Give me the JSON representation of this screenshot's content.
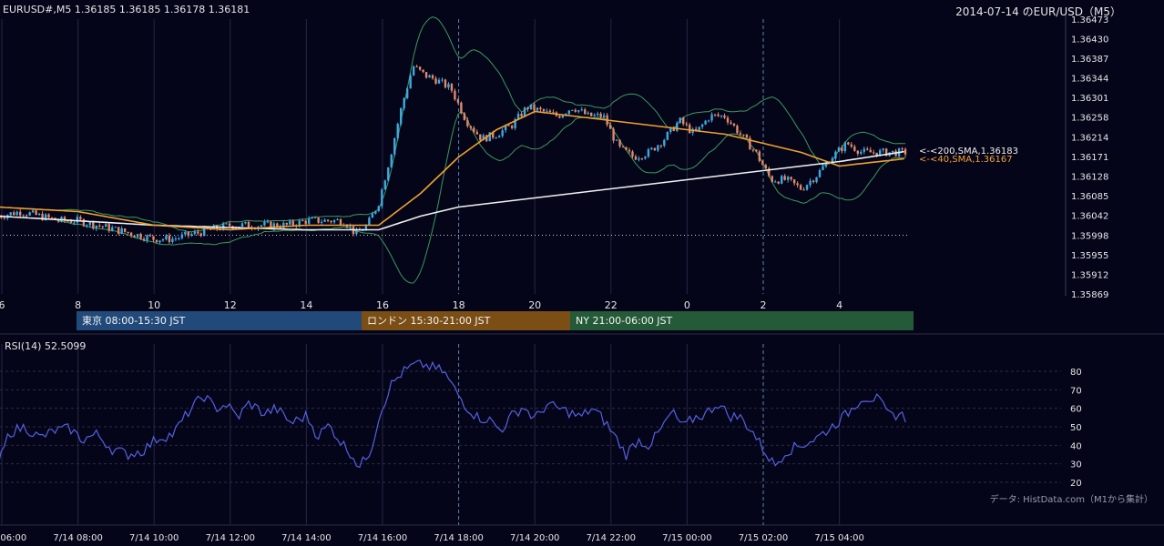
{
  "header": {
    "symbol_info": "EURUSD#,M5 1.36185 1.36185 1.36178 1.36181",
    "title": "2014-07-14 のEUR/USD（M5）"
  },
  "indicators": {
    "sma200_label": "<-<200,SMA,1.36183",
    "sma40_label": "<-<40,SMA,1.36167",
    "rsi_label": "RSI(14) 52.5099"
  },
  "sessions": [
    {
      "label": "東京 08:00-15:30 JST",
      "color": "#214a7a"
    },
    {
      "label": "ロンドン 15:30-21:00 JST",
      "color": "#7a4e14"
    },
    {
      "label": "NY 21:00-06:00 JST",
      "color": "#245a38"
    }
  ],
  "source_note": "データ: HistData.com（M1から集計）",
  "colors": {
    "background": "#05051a",
    "up_candle": "#3fa8e0",
    "down_candle": "#e08a6a",
    "sma200": "#f0f0f0",
    "sma40": "#f0a030",
    "bollinger": "#3a9a5a",
    "rsi": "#5560e0"
  },
  "chart_data": [
    {
      "type": "candlestick",
      "title": "2014-07-14 のEUR/USD（M5）",
      "yticks": [
        "1.36473",
        "1.36430",
        "1.36387",
        "1.36344",
        "1.36301",
        "1.36258",
        "1.36214",
        "1.36171",
        "1.36128",
        "1.36085",
        "1.36042",
        "1.35998",
        "1.35955",
        "1.35912",
        "1.35869"
      ],
      "ylim": [
        1.35869,
        1.36473
      ],
      "xticks": [
        "6",
        "8",
        "10",
        "12",
        "14",
        "16",
        "18",
        "20",
        "22",
        "0",
        "2",
        "4"
      ],
      "x_hours": [
        6,
        8,
        10,
        12,
        14,
        16,
        18,
        20,
        22,
        24,
        26,
        28
      ],
      "dotted_reference_level": 1.35998,
      "dashed_vertical_hours": [
        18,
        26
      ],
      "close_path": [
        [
          5.9,
          1.3604
        ],
        [
          6.5,
          1.3605
        ],
        [
          7.0,
          1.3604
        ],
        [
          7.5,
          1.3603
        ],
        [
          8.0,
          1.3603
        ],
        [
          8.5,
          1.3602
        ],
        [
          9.0,
          1.3601
        ],
        [
          9.5,
          1.36
        ],
        [
          10.0,
          1.3599
        ],
        [
          10.5,
          1.3599
        ],
        [
          11.0,
          1.36
        ],
        [
          11.5,
          1.3601
        ],
        [
          12.0,
          1.3602
        ],
        [
          12.5,
          1.3602
        ],
        [
          13.0,
          1.3602
        ],
        [
          13.5,
          1.3602
        ],
        [
          14.0,
          1.3603
        ],
        [
          14.5,
          1.3603
        ],
        [
          15.0,
          1.3603
        ],
        [
          15.3,
          1.36
        ],
        [
          15.6,
          1.3602
        ],
        [
          15.9,
          1.3607
        ],
        [
          16.2,
          1.3617
        ],
        [
          16.5,
          1.3628
        ],
        [
          16.8,
          1.3637
        ],
        [
          17.1,
          1.3635
        ],
        [
          17.4,
          1.3634
        ],
        [
          17.8,
          1.3632
        ],
        [
          18.2,
          1.3625
        ],
        [
          18.6,
          1.3621
        ],
        [
          19.0,
          1.3622
        ],
        [
          19.4,
          1.3624
        ],
        [
          19.8,
          1.3628
        ],
        [
          20.2,
          1.3627
        ],
        [
          20.6,
          1.3626
        ],
        [
          21.0,
          1.3628
        ],
        [
          21.4,
          1.3626
        ],
        [
          21.8,
          1.3626
        ],
        [
          22.2,
          1.3619
        ],
        [
          22.6,
          1.3617
        ],
        [
          23.0,
          1.3618
        ],
        [
          23.4,
          1.3621
        ],
        [
          23.8,
          1.3625
        ],
        [
          24.2,
          1.3622
        ],
        [
          24.6,
          1.3626
        ],
        [
          25.0,
          1.3626
        ],
        [
          25.4,
          1.3622
        ],
        [
          25.8,
          1.3618
        ],
        [
          26.2,
          1.3612
        ],
        [
          26.6,
          1.3612
        ],
        [
          27.0,
          1.361
        ],
        [
          27.4,
          1.3613
        ],
        [
          27.8,
          1.3617
        ],
        [
          28.2,
          1.362
        ],
        [
          28.6,
          1.3618
        ],
        [
          29.0,
          1.3618
        ],
        [
          29.4,
          1.3618
        ],
        [
          29.8,
          1.3618
        ]
      ],
      "series": [
        {
          "name": "200,SMA",
          "last": 1.36183,
          "points": [
            [
              5.9,
              1.3604
            ],
            [
              10,
              1.3602
            ],
            [
              14,
              1.3601
            ],
            [
              15.9,
              1.3601
            ],
            [
              17,
              1.3604
            ],
            [
              18,
              1.3606
            ],
            [
              20,
              1.3608
            ],
            [
              22,
              1.361
            ],
            [
              24,
              1.3612
            ],
            [
              26,
              1.3614
            ],
            [
              28,
              1.3616
            ],
            [
              29.8,
              1.36183
            ]
          ]
        },
        {
          "name": "40,SMA",
          "last": 1.36167,
          "points": [
            [
              5.9,
              1.3606
            ],
            [
              8,
              1.3605
            ],
            [
              10,
              1.3602
            ],
            [
              12,
              1.3601
            ],
            [
              14,
              1.3602
            ],
            [
              15.9,
              1.3602
            ],
            [
              17,
              1.3609
            ],
            [
              18,
              1.3617
            ],
            [
              19,
              1.3623
            ],
            [
              20,
              1.3627
            ],
            [
              21,
              1.3626
            ],
            [
              22,
              1.3625
            ],
            [
              24,
              1.3623
            ],
            [
              25,
              1.3622
            ],
            [
              26,
              1.362
            ],
            [
              27,
              1.3618
            ],
            [
              28,
              1.3615
            ],
            [
              29.8,
              1.36167
            ]
          ]
        }
      ]
    },
    {
      "type": "line",
      "title": "RSI(14) 52.5099",
      "ylim": [
        20,
        80
      ],
      "yticks": [
        20,
        30,
        40,
        50,
        60,
        70,
        80
      ],
      "xticks": [
        "7/14 06:00",
        "7/14 08:00",
        "7/14 10:00",
        "7/14 12:00",
        "7/14 14:00",
        "7/14 16:00",
        "7/14 18:00",
        "7/14 20:00",
        "7/14 22:00",
        "7/15 00:00",
        "7/15 02:00",
        "7/15 04:00"
      ],
      "x_hours": [
        6,
        8,
        10,
        12,
        14,
        16,
        18,
        20,
        22,
        24,
        26,
        28
      ],
      "series": [
        {
          "name": "RSI(14)",
          "points": [
            [
              5.9,
              29
            ],
            [
              6.2,
              47
            ],
            [
              6.6,
              50
            ],
            [
              7.0,
              44
            ],
            [
              7.4,
              48
            ],
            [
              7.8,
              49
            ],
            [
              8.1,
              43
            ],
            [
              8.5,
              46
            ],
            [
              8.9,
              38
            ],
            [
              9.3,
              35
            ],
            [
              9.7,
              37
            ],
            [
              10.1,
              44
            ],
            [
              10.5,
              46
            ],
            [
              10.9,
              58
            ],
            [
              11.3,
              67
            ],
            [
              11.6,
              60
            ],
            [
              11.9,
              62
            ],
            [
              12.2,
              55
            ],
            [
              12.5,
              63
            ],
            [
              12.9,
              57
            ],
            [
              13.2,
              60
            ],
            [
              13.6,
              52
            ],
            [
              14.0,
              56
            ],
            [
              14.3,
              45
            ],
            [
              14.6,
              51
            ],
            [
              14.9,
              42
            ],
            [
              15.2,
              35
            ],
            [
              15.4,
              28
            ],
            [
              15.7,
              38
            ],
            [
              15.9,
              55
            ],
            [
              16.2,
              72
            ],
            [
              16.5,
              79
            ],
            [
              16.8,
              83
            ],
            [
              17.0,
              84
            ],
            [
              17.3,
              82
            ],
            [
              17.6,
              80
            ],
            [
              17.9,
              70
            ],
            [
              18.2,
              61
            ],
            [
              18.5,
              55
            ],
            [
              18.8,
              54
            ],
            [
              19.1,
              48
            ],
            [
              19.4,
              56
            ],
            [
              19.7,
              61
            ],
            [
              20.0,
              54
            ],
            [
              20.3,
              62
            ],
            [
              20.6,
              60
            ],
            [
              20.9,
              58
            ],
            [
              21.2,
              55
            ],
            [
              21.5,
              60
            ],
            [
              21.8,
              54
            ],
            [
              22.1,
              45
            ],
            [
              22.4,
              35
            ],
            [
              22.7,
              43
            ],
            [
              23.0,
              40
            ],
            [
              23.3,
              48
            ],
            [
              23.6,
              58
            ],
            [
              23.9,
              50
            ],
            [
              24.2,
              55
            ],
            [
              24.5,
              57
            ],
            [
              24.8,
              63
            ],
            [
              25.1,
              56
            ],
            [
              25.4,
              55
            ],
            [
              25.7,
              48
            ],
            [
              26.0,
              38
            ],
            [
              26.3,
              29
            ],
            [
              26.6,
              37
            ],
            [
              27.0,
              40
            ],
            [
              27.4,
              44
            ],
            [
              27.8,
              50
            ],
            [
              28.2,
              57
            ],
            [
              28.6,
              66
            ],
            [
              29.0,
              65
            ],
            [
              29.3,
              56
            ],
            [
              29.6,
              57
            ],
            [
              29.8,
              53
            ]
          ]
        }
      ]
    }
  ]
}
